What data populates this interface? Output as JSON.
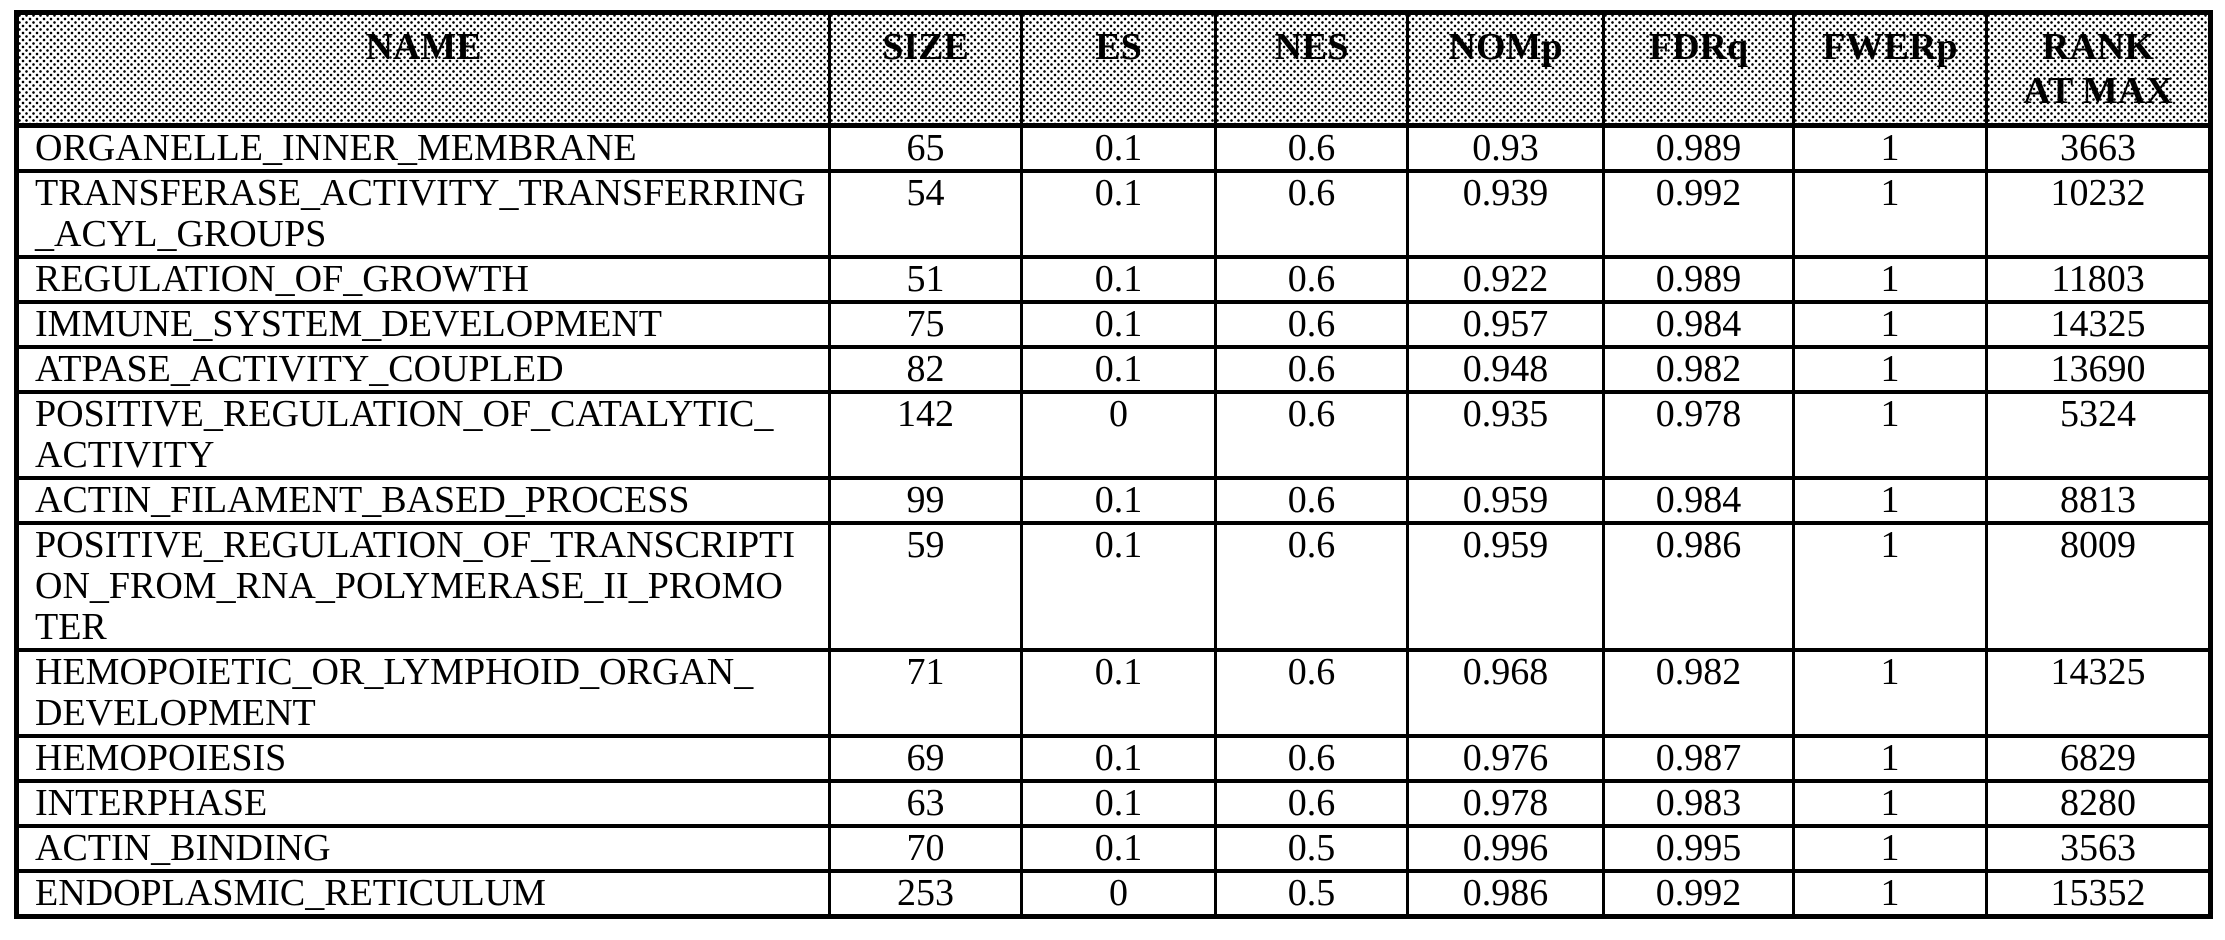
{
  "colors": {
    "border": "#000000",
    "text": "#000000",
    "background": "#ffffff",
    "header_stipple_dot": "#000000",
    "header_stipple_bg": "#ffffff"
  },
  "table": {
    "columns": [
      {
        "key": "name",
        "label": "NAME"
      },
      {
        "key": "size",
        "label": "SIZE"
      },
      {
        "key": "es",
        "label": "ES"
      },
      {
        "key": "nes",
        "label": "NES"
      },
      {
        "key": "nomp",
        "label": "NOMp"
      },
      {
        "key": "fdrq",
        "label": "FDRq"
      },
      {
        "key": "fwerp",
        "label": "FWERp"
      },
      {
        "key": "rank_at_max",
        "label": "RANK\nAT MAX"
      }
    ],
    "rows": [
      {
        "name": "ORGANELLE_INNER_MEMBRANE",
        "size": "65",
        "es": "0.1",
        "nes": "0.6",
        "nomp": "0.93",
        "fdrq": "0.989",
        "fwerp": "1",
        "rank_at_max": "3663"
      },
      {
        "name": "TRANSFERASE_ACTIVITY_TRANSFERRING\n_ACYL_GROUPS",
        "size": "54",
        "es": "0.1",
        "nes": "0.6",
        "nomp": "0.939",
        "fdrq": "0.992",
        "fwerp": "1",
        "rank_at_max": "10232"
      },
      {
        "name": "REGULATION_OF_GROWTH",
        "size": "51",
        "es": "0.1",
        "nes": "0.6",
        "nomp": "0.922",
        "fdrq": "0.989",
        "fwerp": "1",
        "rank_at_max": "11803"
      },
      {
        "name": "IMMUNE_SYSTEM_DEVELOPMENT",
        "size": "75",
        "es": "0.1",
        "nes": "0.6",
        "nomp": "0.957",
        "fdrq": "0.984",
        "fwerp": "1",
        "rank_at_max": "14325"
      },
      {
        "name": "ATPASE_ACTIVITY_COUPLED",
        "size": "82",
        "es": "0.1",
        "nes": "0.6",
        "nomp": "0.948",
        "fdrq": "0.982",
        "fwerp": "1",
        "rank_at_max": "13690"
      },
      {
        "name": "POSITIVE_REGULATION_OF_CATALYTIC_\nACTIVITY",
        "size": "142",
        "es": "0",
        "nes": "0.6",
        "nomp": "0.935",
        "fdrq": "0.978",
        "fwerp": "1",
        "rank_at_max": "5324"
      },
      {
        "name": "ACTIN_FILAMENT_BASED_PROCESS",
        "size": "99",
        "es": "0.1",
        "nes": "0.6",
        "nomp": "0.959",
        "fdrq": "0.984",
        "fwerp": "1",
        "rank_at_max": "8813"
      },
      {
        "name": "POSITIVE_REGULATION_OF_TRANSCRIPTI\nON_FROM_RNA_POLYMERASE_II_PROMO\nTER",
        "size": "59",
        "es": "0.1",
        "nes": "0.6",
        "nomp": "0.959",
        "fdrq": "0.986",
        "fwerp": "1",
        "rank_at_max": "8009"
      },
      {
        "name": "HEMOPOIETIC_OR_LYMPHOID_ORGAN_\nDEVELOPMENT",
        "size": "71",
        "es": "0.1",
        "nes": "0.6",
        "nomp": "0.968",
        "fdrq": "0.982",
        "fwerp": "1",
        "rank_at_max": "14325"
      },
      {
        "name": "HEMOPOIESIS",
        "size": "69",
        "es": "0.1",
        "nes": "0.6",
        "nomp": "0.976",
        "fdrq": "0.987",
        "fwerp": "1",
        "rank_at_max": "6829"
      },
      {
        "name": "INTERPHASE",
        "size": "63",
        "es": "0.1",
        "nes": "0.6",
        "nomp": "0.978",
        "fdrq": "0.983",
        "fwerp": "1",
        "rank_at_max": "8280"
      },
      {
        "name": "ACTIN_BINDING",
        "size": "70",
        "es": "0.1",
        "nes": "0.5",
        "nomp": "0.996",
        "fdrq": "0.995",
        "fwerp": "1",
        "rank_at_max": "3563"
      },
      {
        "name": "ENDOPLASMIC_RETICULUM",
        "size": "253",
        "es": "0",
        "nes": "0.5",
        "nomp": "0.986",
        "fdrq": "0.992",
        "fwerp": "1",
        "rank_at_max": "15352"
      }
    ]
  }
}
